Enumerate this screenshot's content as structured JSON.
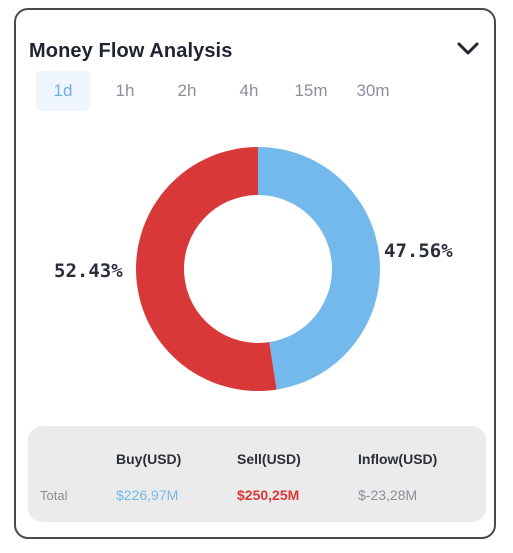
{
  "header": {
    "title": "Money Flow Analysis",
    "collapse_icon": "chevron-down-icon"
  },
  "tabs": [
    {
      "label": "1d",
      "active": true
    },
    {
      "label": "1h",
      "active": false
    },
    {
      "label": "2h",
      "active": false
    },
    {
      "label": "4h",
      "active": false
    },
    {
      "label": "15m",
      "active": false
    },
    {
      "label": "30m",
      "active": false
    }
  ],
  "chart_data": {
    "type": "pie",
    "donut": true,
    "slices": [
      {
        "label": "47.56%",
        "value": 47.56,
        "color": "#74b9ec"
      },
      {
        "label": "52.43%",
        "value": 52.43,
        "color": "#d93838"
      }
    ]
  },
  "summary": {
    "headers": {
      "buy": "Buy(USD)",
      "sell": "Sell(USD)",
      "inflow": "Inflow(USD)"
    },
    "row_label": "Total",
    "buy": "$226,97M",
    "sell": "$250,25M",
    "inflow": "$-23,28M"
  },
  "colors": {
    "buy": "#74b9ec",
    "sell": "#d93838",
    "inflow": "#8a8f9a"
  }
}
